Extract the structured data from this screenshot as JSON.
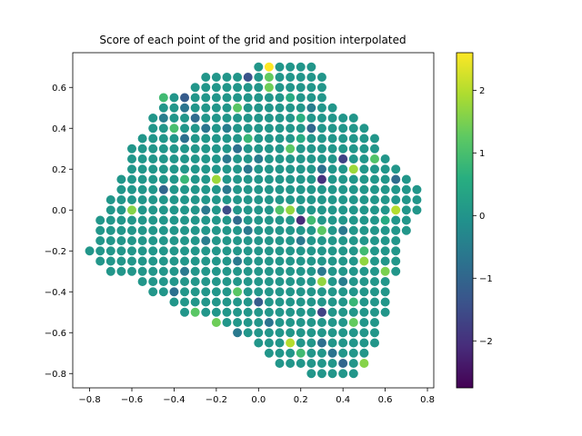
{
  "chart_data": {
    "type": "scatter",
    "title": "Score of each point of the grid and position interpolated",
    "xlabel": "",
    "ylabel": "",
    "xlim": [
      -0.88,
      0.83
    ],
    "ylim": [
      -0.87,
      0.77
    ],
    "x_ticks": [
      -0.8,
      -0.6,
      -0.4,
      -0.2,
      0.0,
      0.2,
      0.4,
      0.6,
      0.8
    ],
    "x_tick_labels": [
      "−0.8",
      "−0.6",
      "−0.4",
      "−0.2",
      "0.0",
      "0.2",
      "0.4",
      "0.6",
      "0.8"
    ],
    "y_ticks": [
      -0.8,
      -0.6,
      -0.4,
      -0.2,
      0.0,
      0.2,
      0.4,
      0.6
    ],
    "y_tick_labels": [
      "−0.8",
      "−0.6",
      "−0.4",
      "−0.2",
      "0.0",
      "0.2",
      "0.4",
      "0.6"
    ],
    "grid": false,
    "colormap": "viridis",
    "color_range": [
      -2.75,
      2.6
    ],
    "colorbar_ticks": [
      -2,
      -1,
      0,
      1,
      2
    ],
    "colorbar_tick_labels": [
      "−2",
      "−1",
      "0",
      "1",
      "2"
    ],
    "grid_spacing": 0.05,
    "row_extents": [
      {
        "y": 0.7,
        "x_from": 0.0,
        "x_to": 0.25
      },
      {
        "y": 0.65,
        "x_from": -0.25,
        "x_to": 0.3
      },
      {
        "y": 0.6,
        "x_from": -0.3,
        "x_to": 0.3
      },
      {
        "y": 0.55,
        "x_from": -0.45,
        "x_to": 0.3
      },
      {
        "y": 0.5,
        "x_from": -0.45,
        "x_to": 0.35
      },
      {
        "y": 0.45,
        "x_from": -0.5,
        "x_to": 0.45
      },
      {
        "y": 0.4,
        "x_from": -0.5,
        "x_to": 0.5
      },
      {
        "y": 0.35,
        "x_from": -0.55,
        "x_to": 0.55
      },
      {
        "y": 0.3,
        "x_from": -0.6,
        "x_to": 0.55
      },
      {
        "y": 0.25,
        "x_from": -0.6,
        "x_to": 0.6
      },
      {
        "y": 0.2,
        "x_from": -0.6,
        "x_to": 0.65
      },
      {
        "y": 0.15,
        "x_from": -0.65,
        "x_to": 0.7
      },
      {
        "y": 0.1,
        "x_from": -0.65,
        "x_to": 0.75
      },
      {
        "y": 0.05,
        "x_from": -0.7,
        "x_to": 0.75
      },
      {
        "y": 0.0,
        "x_from": -0.7,
        "x_to": 0.75
      },
      {
        "y": -0.05,
        "x_from": -0.75,
        "x_to": 0.7
      },
      {
        "y": -0.1,
        "x_from": -0.75,
        "x_to": 0.7
      },
      {
        "y": -0.15,
        "x_from": -0.75,
        "x_to": 0.65
      },
      {
        "y": -0.2,
        "x_from": -0.8,
        "x_to": 0.65
      },
      {
        "y": -0.25,
        "x_from": -0.75,
        "x_to": 0.65
      },
      {
        "y": -0.3,
        "x_from": -0.7,
        "x_to": 0.65
      },
      {
        "y": -0.35,
        "x_from": -0.55,
        "x_to": 0.6
      },
      {
        "y": -0.4,
        "x_from": -0.5,
        "x_to": 0.6
      },
      {
        "y": -0.45,
        "x_from": -0.4,
        "x_to": 0.6
      },
      {
        "y": -0.5,
        "x_from": -0.35,
        "x_to": 0.6
      },
      {
        "y": -0.55,
        "x_from": -0.2,
        "x_to": 0.55
      },
      {
        "y": -0.6,
        "x_from": -0.1,
        "x_to": 0.55
      },
      {
        "y": -0.65,
        "x_from": 0.0,
        "x_to": 0.55
      },
      {
        "y": -0.7,
        "x_from": 0.05,
        "x_to": 0.5
      },
      {
        "y": -0.75,
        "x_from": 0.1,
        "x_to": 0.5
      },
      {
        "y": -0.8,
        "x_from": 0.25,
        "x_to": 0.45
      }
    ],
    "default_value": 0.05,
    "value_overrides": [
      {
        "x": 0.05,
        "y": 0.7,
        "v": 2.6
      },
      {
        "x": 0.05,
        "y": 0.65,
        "v": 1.3
      },
      {
        "x": -0.05,
        "y": 0.65,
        "v": -1.4
      },
      {
        "x": 0.05,
        "y": 0.6,
        "v": 1.4
      },
      {
        "x": -0.45,
        "y": 0.55,
        "v": 0.9
      },
      {
        "x": -0.35,
        "y": 0.55,
        "v": -1.2
      },
      {
        "x": 0.15,
        "y": 0.55,
        "v": 0.5
      },
      {
        "x": -0.35,
        "y": 0.5,
        "v": -0.7
      },
      {
        "x": -0.1,
        "y": 0.5,
        "v": 1.2
      },
      {
        "x": 0.25,
        "y": 0.5,
        "v": -0.5
      },
      {
        "x": -0.45,
        "y": 0.45,
        "v": -0.5
      },
      {
        "x": -0.3,
        "y": 0.45,
        "v": -0.9
      },
      {
        "x": 0.2,
        "y": 0.45,
        "v": 0.6
      },
      {
        "x": -0.4,
        "y": 0.4,
        "v": 1.0
      },
      {
        "x": -0.25,
        "y": 0.4,
        "v": -0.7
      },
      {
        "x": -0.15,
        "y": 0.4,
        "v": -0.5
      },
      {
        "x": 0.25,
        "y": 0.4,
        "v": -1.0
      },
      {
        "x": -0.35,
        "y": 0.35,
        "v": -0.8
      },
      {
        "x": -0.05,
        "y": 0.35,
        "v": 0.8
      },
      {
        "x": 0.2,
        "y": 0.35,
        "v": 0.5
      },
      {
        "x": -0.1,
        "y": 0.3,
        "v": -0.8
      },
      {
        "x": 0.15,
        "y": 0.3,
        "v": 1.2
      },
      {
        "x": -0.15,
        "y": 0.25,
        "v": -0.6
      },
      {
        "x": 0.0,
        "y": 0.25,
        "v": -0.5
      },
      {
        "x": 0.4,
        "y": 0.25,
        "v": -1.7
      },
      {
        "x": -0.05,
        "y": 0.2,
        "v": -0.6
      },
      {
        "x": 0.3,
        "y": 0.2,
        "v": -0.8
      },
      {
        "x": 0.45,
        "y": 0.2,
        "v": 1.8
      },
      {
        "x": 0.55,
        "y": 0.25,
        "v": 1.1
      },
      {
        "x": -0.2,
        "y": 0.15,
        "v": 1.8
      },
      {
        "x": -0.35,
        "y": 0.15,
        "v": 0.8
      },
      {
        "x": 0.3,
        "y": 0.15,
        "v": -2.0
      },
      {
        "x": 0.65,
        "y": 0.15,
        "v": -0.9
      },
      {
        "x": -0.45,
        "y": 0.1,
        "v": -1.0
      },
      {
        "x": -0.15,
        "y": 0.1,
        "v": -0.6
      },
      {
        "x": -0.6,
        "y": 0.0,
        "v": 1.6
      },
      {
        "x": -0.25,
        "y": 0.0,
        "v": -0.6
      },
      {
        "x": -0.15,
        "y": 0.0,
        "v": -1.5
      },
      {
        "x": 0.1,
        "y": 0.0,
        "v": 1.1
      },
      {
        "x": 0.15,
        "y": 0.0,
        "v": 1.7
      },
      {
        "x": 0.65,
        "y": 0.0,
        "v": 2.0
      },
      {
        "x": -0.1,
        "y": -0.05,
        "v": -0.9
      },
      {
        "x": 0.2,
        "y": -0.05,
        "v": -2.1
      },
      {
        "x": 0.25,
        "y": -0.05,
        "v": 0.9
      },
      {
        "x": 0.6,
        "y": -0.05,
        "v": 0.5
      },
      {
        "x": -0.05,
        "y": -0.1,
        "v": -0.6
      },
      {
        "x": 0.3,
        "y": -0.1,
        "v": 1.2
      },
      {
        "x": 0.4,
        "y": -0.1,
        "v": -0.6
      },
      {
        "x": -0.25,
        "y": -0.15,
        "v": -0.5
      },
      {
        "x": 0.2,
        "y": -0.15,
        "v": -0.6
      },
      {
        "x": 0.5,
        "y": -0.2,
        "v": 0.9
      },
      {
        "x": -0.1,
        "y": -0.25,
        "v": -0.6
      },
      {
        "x": 0.5,
        "y": -0.25,
        "v": 1.7
      },
      {
        "x": -0.35,
        "y": -0.3,
        "v": -0.6
      },
      {
        "x": 0.3,
        "y": -0.3,
        "v": -0.6
      },
      {
        "x": 0.6,
        "y": -0.3,
        "v": 1.5
      },
      {
        "x": 0.3,
        "y": -0.35,
        "v": 1.7
      },
      {
        "x": 0.4,
        "y": -0.35,
        "v": -0.5
      },
      {
        "x": -0.4,
        "y": -0.4,
        "v": -0.8
      },
      {
        "x": -0.1,
        "y": -0.4,
        "v": 1.2
      },
      {
        "x": 0.0,
        "y": -0.45,
        "v": -1.2
      },
      {
        "x": 0.45,
        "y": -0.45,
        "v": 0.8
      },
      {
        "x": 0.3,
        "y": -0.5,
        "v": -1.7
      },
      {
        "x": -0.3,
        "y": -0.5,
        "v": 1.2
      },
      {
        "x": -0.2,
        "y": -0.55,
        "v": 1.4
      },
      {
        "x": 0.05,
        "y": -0.55,
        "v": -0.7
      },
      {
        "x": 0.45,
        "y": -0.55,
        "v": 1.3
      },
      {
        "x": -0.1,
        "y": -0.6,
        "v": -0.6
      },
      {
        "x": 0.15,
        "y": -0.65,
        "v": 2.0
      },
      {
        "x": 0.3,
        "y": -0.65,
        "v": -0.8
      },
      {
        "x": 0.2,
        "y": -0.7,
        "v": 0.9
      },
      {
        "x": 0.35,
        "y": -0.7,
        "v": -0.7
      },
      {
        "x": 0.5,
        "y": -0.75,
        "v": 1.6
      },
      {
        "x": 0.4,
        "y": -0.75,
        "v": -1.0
      }
    ]
  }
}
